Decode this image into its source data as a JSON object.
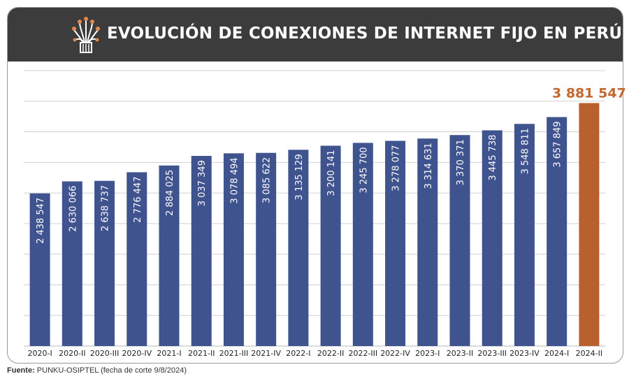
{
  "header": {
    "title": "EVOLUCIÓN DE CONEXIONES DE INTERNET FIJO EN PERÚ",
    "icon": "fiber-optic-icon"
  },
  "chart_data": {
    "type": "bar",
    "categories": [
      "2020-I",
      "2020-II",
      "2020-III",
      "2020-IV",
      "2021-I",
      "2021-II",
      "2021-III",
      "2021-IV",
      "2022-I",
      "2022-II",
      "2022-III",
      "2022-IV",
      "2023-I",
      "2023-II",
      "2023-III",
      "2023-IV",
      "2024-I",
      "2024-II"
    ],
    "values": [
      2438547,
      2630066,
      2638737,
      2776447,
      2884025,
      3037349,
      3078494,
      3085622,
      3135129,
      3200141,
      3245700,
      3278077,
      3314631,
      3370371,
      3445738,
      3548811,
      3657849,
      3881547
    ],
    "labels": [
      "2 438 547",
      "2 630 066",
      "2 638 737",
      "2 776 447",
      "2 884 025",
      "3 037 349",
      "3 078 494",
      "3 085 622",
      "3 135 129",
      "3 200 141",
      "3 245 700",
      "3 278 077",
      "3 314 631",
      "3 370 371",
      "3 445 738",
      "3 548 811",
      "3 657 849",
      "3 881 547"
    ],
    "title": "EVOLUCIÓN DE CONEXIONES DE INTERNET FIJO EN PERÚ",
    "xlabel": "",
    "ylabel": "",
    "ylim": [
      0,
      4400000
    ],
    "grid": true,
    "legend": "none",
    "highlight_index": 17,
    "colors": {
      "bar": "#3f538e",
      "highlight": "#b8602e",
      "grid": "#d0d0d0"
    }
  },
  "footer": {
    "source_label": "Fuente:",
    "source_text": "PUNKU-OSIPTEL (fecha de corte 9/8/2024)"
  }
}
